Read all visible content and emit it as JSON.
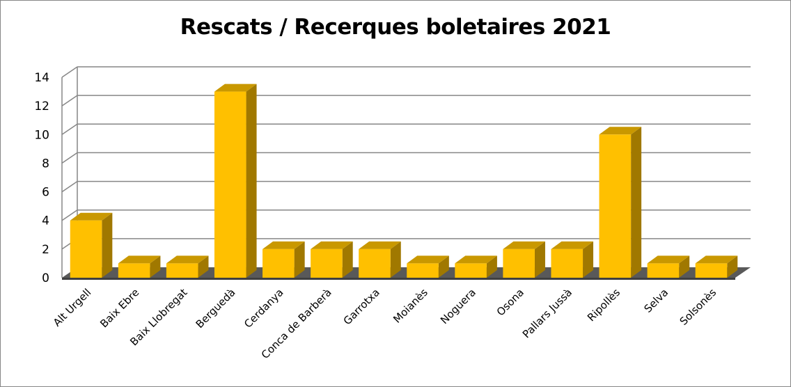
{
  "chart_data": {
    "type": "bar",
    "title": "Rescats / Recerques boletaires 2021",
    "categories": [
      "Alt Urgell",
      "Baix Ebre",
      "Baix Llobregat",
      "Berguedà",
      "Cerdanya",
      "Conca de Barberà",
      "Garrotxa",
      "Moianès",
      "Noguera",
      "Osona",
      "Pallars Jussà",
      "Ripollès",
      "Selva",
      "Solsonès"
    ],
    "values": [
      4,
      1,
      1,
      13,
      2,
      2,
      2,
      1,
      1,
      2,
      2,
      10,
      1,
      1
    ],
    "yticks": [
      "0",
      "2",
      "4",
      "6",
      "8",
      "10",
      "12",
      "14"
    ],
    "ylim": [
      0,
      14
    ],
    "grid": true,
    "legend": "none",
    "colors": {
      "bar_front": "#FFC000",
      "bar_top": "#C99800",
      "bar_side": "#A07800",
      "floor": "#595959",
      "grid": "#868686"
    }
  }
}
